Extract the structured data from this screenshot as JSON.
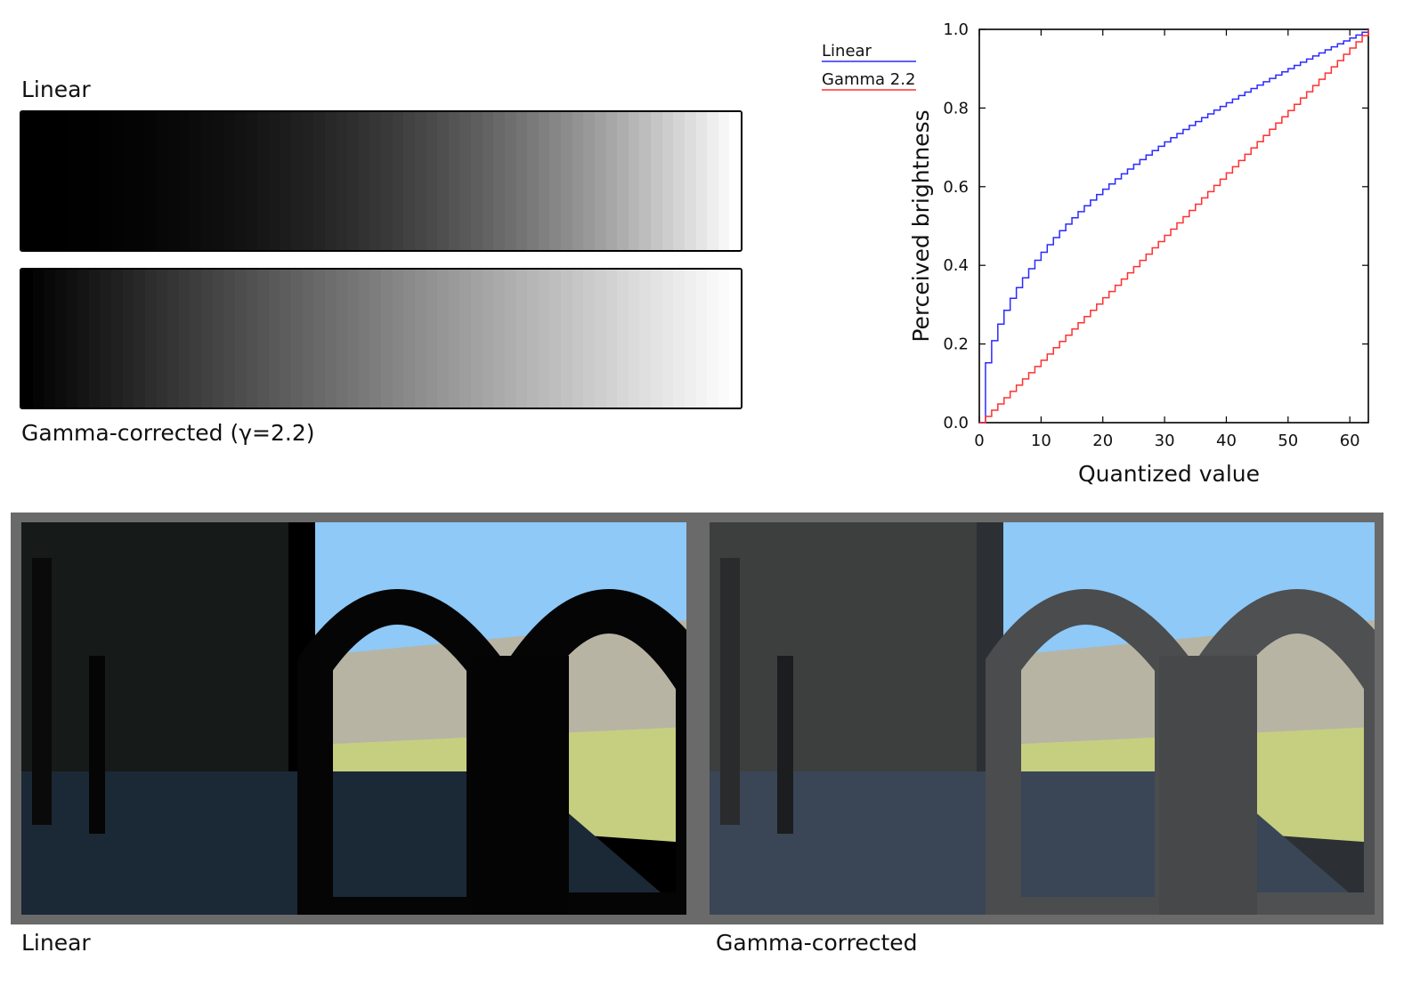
{
  "strips": {
    "top_label": "Linear",
    "bottom_label": "Gamma-corrected (γ=2.2)",
    "steps": 64,
    "gamma": 2.2
  },
  "chart_data": {
    "type": "line",
    "xlabel": "Quantized value",
    "ylabel": "Perceived brightness",
    "xlim": [
      0,
      63
    ],
    "ylim": [
      0,
      1
    ],
    "xticks": [
      0,
      10,
      20,
      30,
      40,
      50,
      60
    ],
    "yticks": [
      "0.0",
      "0.2",
      "0.4",
      "0.6",
      "0.8",
      "1.0"
    ],
    "legend_position": "top-left, outside",
    "grid": false,
    "step_style": true,
    "series": [
      {
        "name": "Linear",
        "color": "#2a2aff",
        "formula": "(x/63)^(1/2.2)"
      },
      {
        "name": "Gamma 2.2",
        "color": "#ff3030",
        "formula": "x/63"
      }
    ]
  },
  "photos": {
    "left_label": "Linear",
    "right_label": "Gamma-corrected",
    "sky_color": "#8ec9f8",
    "frame_color": "#6a6a6a"
  }
}
